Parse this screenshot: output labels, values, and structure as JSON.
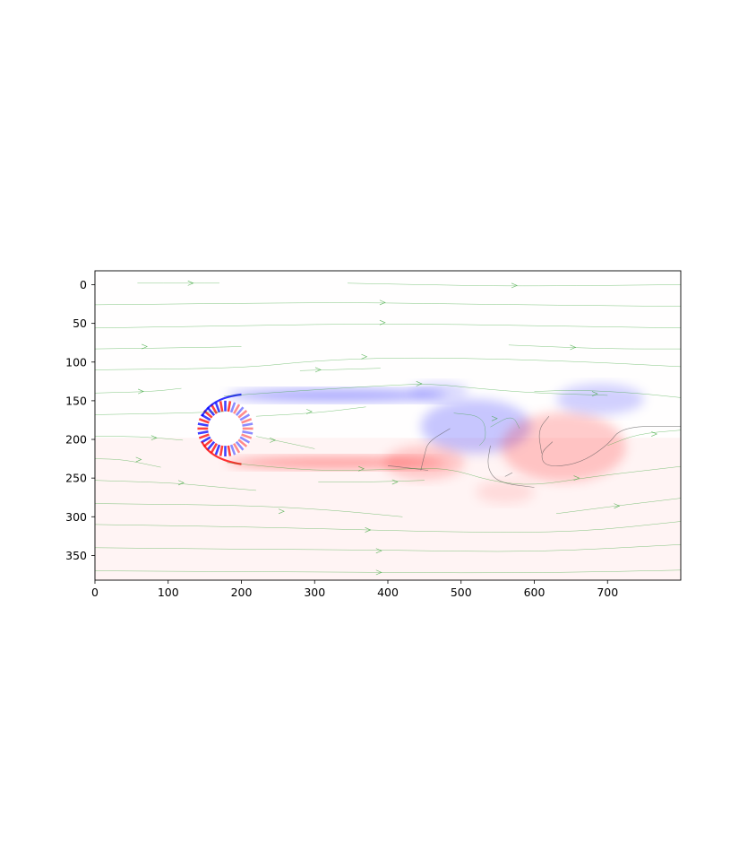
{
  "chart_data": {
    "type": "heatmap",
    "title": "",
    "xlabel": "",
    "ylabel": "",
    "description_kind": "vorticity field with streamlines around a circular cylinder",
    "xlim": [
      0,
      800
    ],
    "ylim": [
      400,
      0
    ],
    "x_ticks": [
      0,
      100,
      200,
      300,
      400,
      500,
      600,
      700
    ],
    "y_ticks": [
      0,
      50,
      100,
      150,
      200,
      250,
      300,
      350
    ],
    "colormap": {
      "negative": "#0000ff",
      "zero": "#ffffff",
      "positive": "#ff0000"
    },
    "streamline_color": "#2ca02c",
    "contour_color": "#555555",
    "cylinder": {
      "cx": 178,
      "cy": 188,
      "r": 38
    },
    "wake_regions": [
      {
        "sign": -1,
        "cx": 330,
        "cy": 145,
        "rx": 150,
        "ry": 8,
        "strength": 0.35
      },
      {
        "sign": 1,
        "cx": 330,
        "cy": 232,
        "rx": 150,
        "ry": 8,
        "strength": 0.35
      },
      {
        "sign": -1,
        "cx": 520,
        "cy": 185,
        "rx": 75,
        "ry": 35,
        "strength": 0.22
      },
      {
        "sign": 1,
        "cx": 450,
        "cy": 232,
        "rx": 55,
        "ry": 22,
        "strength": 0.18
      },
      {
        "sign": 1,
        "cx": 640,
        "cy": 212,
        "rx": 85,
        "ry": 45,
        "strength": 0.2
      },
      {
        "sign": -1,
        "cx": 690,
        "cy": 150,
        "rx": 60,
        "ry": 20,
        "strength": 0.18
      },
      {
        "sign": -1,
        "cx": 470,
        "cy": 140,
        "rx": 40,
        "ry": 12,
        "strength": 0.15
      },
      {
        "sign": 1,
        "cx": 560,
        "cy": 270,
        "rx": 40,
        "ry": 15,
        "strength": 0.1
      }
    ],
    "background_positive_band": {
      "from_y": 200,
      "to_y": 400,
      "strength": 0.04
    },
    "streamlines": [
      [
        [
          58,
          0
        ],
        [
          130,
          0
        ],
        [
          170,
          0
        ]
      ],
      [
        [
          345,
          0
        ],
        [
          450,
          2
        ],
        [
          570,
          4
        ],
        [
          800,
          2
        ]
      ],
      [
        [
          0,
          28
        ],
        [
          200,
          26
        ],
        [
          360,
          25
        ],
        [
          500,
          27
        ],
        [
          800,
          30
        ]
      ],
      [
        [
          0,
          58
        ],
        [
          200,
          55
        ],
        [
          400,
          52
        ],
        [
          600,
          55
        ],
        [
          800,
          58
        ]
      ],
      [
        [
          0,
          85
        ],
        [
          150,
          83
        ],
        [
          200,
          82
        ]
      ],
      [
        [
          565,
          80
        ],
        [
          700,
          85
        ],
        [
          800,
          85
        ]
      ],
      [
        [
          0,
          112
        ],
        [
          200,
          110
        ],
        [
          300,
          100
        ],
        [
          420,
          96
        ],
        [
          560,
          98
        ],
        [
          700,
          103
        ],
        [
          800,
          108
        ]
      ],
      [
        [
          280,
          113
        ],
        [
          320,
          112
        ],
        [
          390,
          110
        ]
      ],
      [
        [
          0,
          142
        ],
        [
          80,
          140
        ],
        [
          118,
          136
        ]
      ],
      [
        [
          176,
          146
        ],
        [
          280,
          139
        ],
        [
          400,
          132
        ],
        [
          460,
          130
        ],
        [
          520,
          136
        ],
        [
          600,
          142
        ],
        [
          700,
          145
        ]
      ],
      [
        [
          600,
          140
        ],
        [
          660,
          138
        ],
        [
          740,
          142
        ],
        [
          800,
          148
        ]
      ],
      [
        [
          0,
          170
        ],
        [
          120,
          168
        ],
        [
          176,
          166
        ]
      ],
      [
        [
          220,
          172
        ],
        [
          300,
          168
        ],
        [
          370,
          160
        ]
      ],
      [
        [
          540,
          186
        ],
        [
          570,
          170
        ],
        [
          580,
          188
        ]
      ],
      [
        [
          490,
          168
        ],
        [
          530,
          172
        ],
        [
          535,
          200
        ],
        [
          525,
          210
        ]
      ],
      [
        [
          0,
          198
        ],
        [
          60,
          198
        ],
        [
          120,
          203
        ]
      ],
      [
        [
          220,
          198
        ],
        [
          260,
          206
        ],
        [
          300,
          214
        ]
      ],
      [
        [
          700,
          210
        ],
        [
          740,
          195
        ],
        [
          800,
          190
        ]
      ],
      [
        [
          0,
          227
        ],
        [
          40,
          228
        ],
        [
          90,
          238
        ]
      ],
      [
        [
          180,
          232
        ],
        [
          300,
          243
        ],
        [
          400,
          241
        ],
        [
          480,
          238
        ],
        [
          540,
          256
        ],
        [
          600,
          262
        ],
        [
          680,
          250
        ],
        [
          800,
          237
        ]
      ],
      [
        [
          0,
          255
        ],
        [
          100,
          258
        ],
        [
          150,
          262
        ],
        [
          220,
          268
        ]
      ],
      [
        [
          305,
          257
        ],
        [
          380,
          257
        ],
        [
          450,
          255
        ]
      ],
      [
        [
          0,
          285
        ],
        [
          200,
          287
        ],
        [
          320,
          293
        ],
        [
          420,
          302
        ]
      ],
      [
        [
          630,
          298
        ],
        [
          720,
          287
        ],
        [
          800,
          278
        ]
      ],
      [
        [
          0,
          312
        ],
        [
          200,
          315
        ],
        [
          370,
          319
        ],
        [
          500,
          322
        ],
        [
          660,
          322
        ],
        [
          800,
          308
        ]
      ],
      [
        [
          0,
          342
        ],
        [
          200,
          344
        ],
        [
          400,
          345
        ],
        [
          600,
          348
        ],
        [
          800,
          338
        ]
      ],
      [
        [
          0,
          372
        ],
        [
          200,
          373
        ],
        [
          400,
          374
        ],
        [
          600,
          375
        ],
        [
          800,
          371
        ]
      ],
      [
        [
          0,
          395
        ],
        [
          200,
          395
        ],
        [
          340,
          394
        ]
      ],
      [
        [
          640,
          398
        ],
        [
          760,
          396
        ]
      ]
    ],
    "arrows": [
      [
        133,
        0,
        1
      ],
      [
        575,
        3,
        1
      ],
      [
        395,
        25,
        1
      ],
      [
        395,
        51,
        1
      ],
      [
        70,
        82,
        1
      ],
      [
        655,
        83,
        1
      ],
      [
        370,
        95,
        1
      ],
      [
        307,
        112,
        1
      ],
      [
        65,
        140,
        1
      ],
      [
        445,
        130,
        1
      ],
      [
        685,
        143,
        1
      ],
      [
        295,
        166,
        1
      ],
      [
        548,
        175,
        1
      ],
      [
        83,
        200,
        1
      ],
      [
        245,
        203,
        1
      ],
      [
        766,
        195,
        1
      ],
      [
        62,
        228,
        1
      ],
      [
        366,
        240,
        1
      ],
      [
        412,
        257,
        1
      ],
      [
        120,
        258,
        1
      ],
      [
        660,
        252,
        1
      ],
      [
        257,
        295,
        1
      ],
      [
        715,
        288,
        1
      ],
      [
        375,
        319,
        1
      ],
      [
        390,
        346,
        1
      ],
      [
        390,
        374,
        1
      ],
      [
        328,
        394,
        1
      ],
      [
        760,
        396,
        1
      ]
    ],
    "contours": [
      [
        [
          485,
          188
        ],
        [
          455,
          205
        ],
        [
          450,
          222
        ],
        [
          445,
          242
        ]
      ],
      [
        [
          455,
          242
        ],
        [
          420,
          238
        ],
        [
          400,
          236
        ]
      ],
      [
        [
          540,
          210
        ],
        [
          535,
          238
        ],
        [
          550,
          258
        ],
        [
          600,
          264
        ]
      ],
      [
        [
          625,
          205
        ],
        [
          608,
          220
        ],
        [
          615,
          238
        ],
        [
          660,
          234
        ],
        [
          700,
          210
        ],
        [
          720,
          185
        ],
        [
          800,
          185
        ]
      ],
      [
        [
          620,
          172
        ],
        [
          605,
          190
        ],
        [
          610,
          220
        ]
      ],
      [
        [
          560,
          250
        ],
        [
          570,
          245
        ]
      ]
    ]
  }
}
